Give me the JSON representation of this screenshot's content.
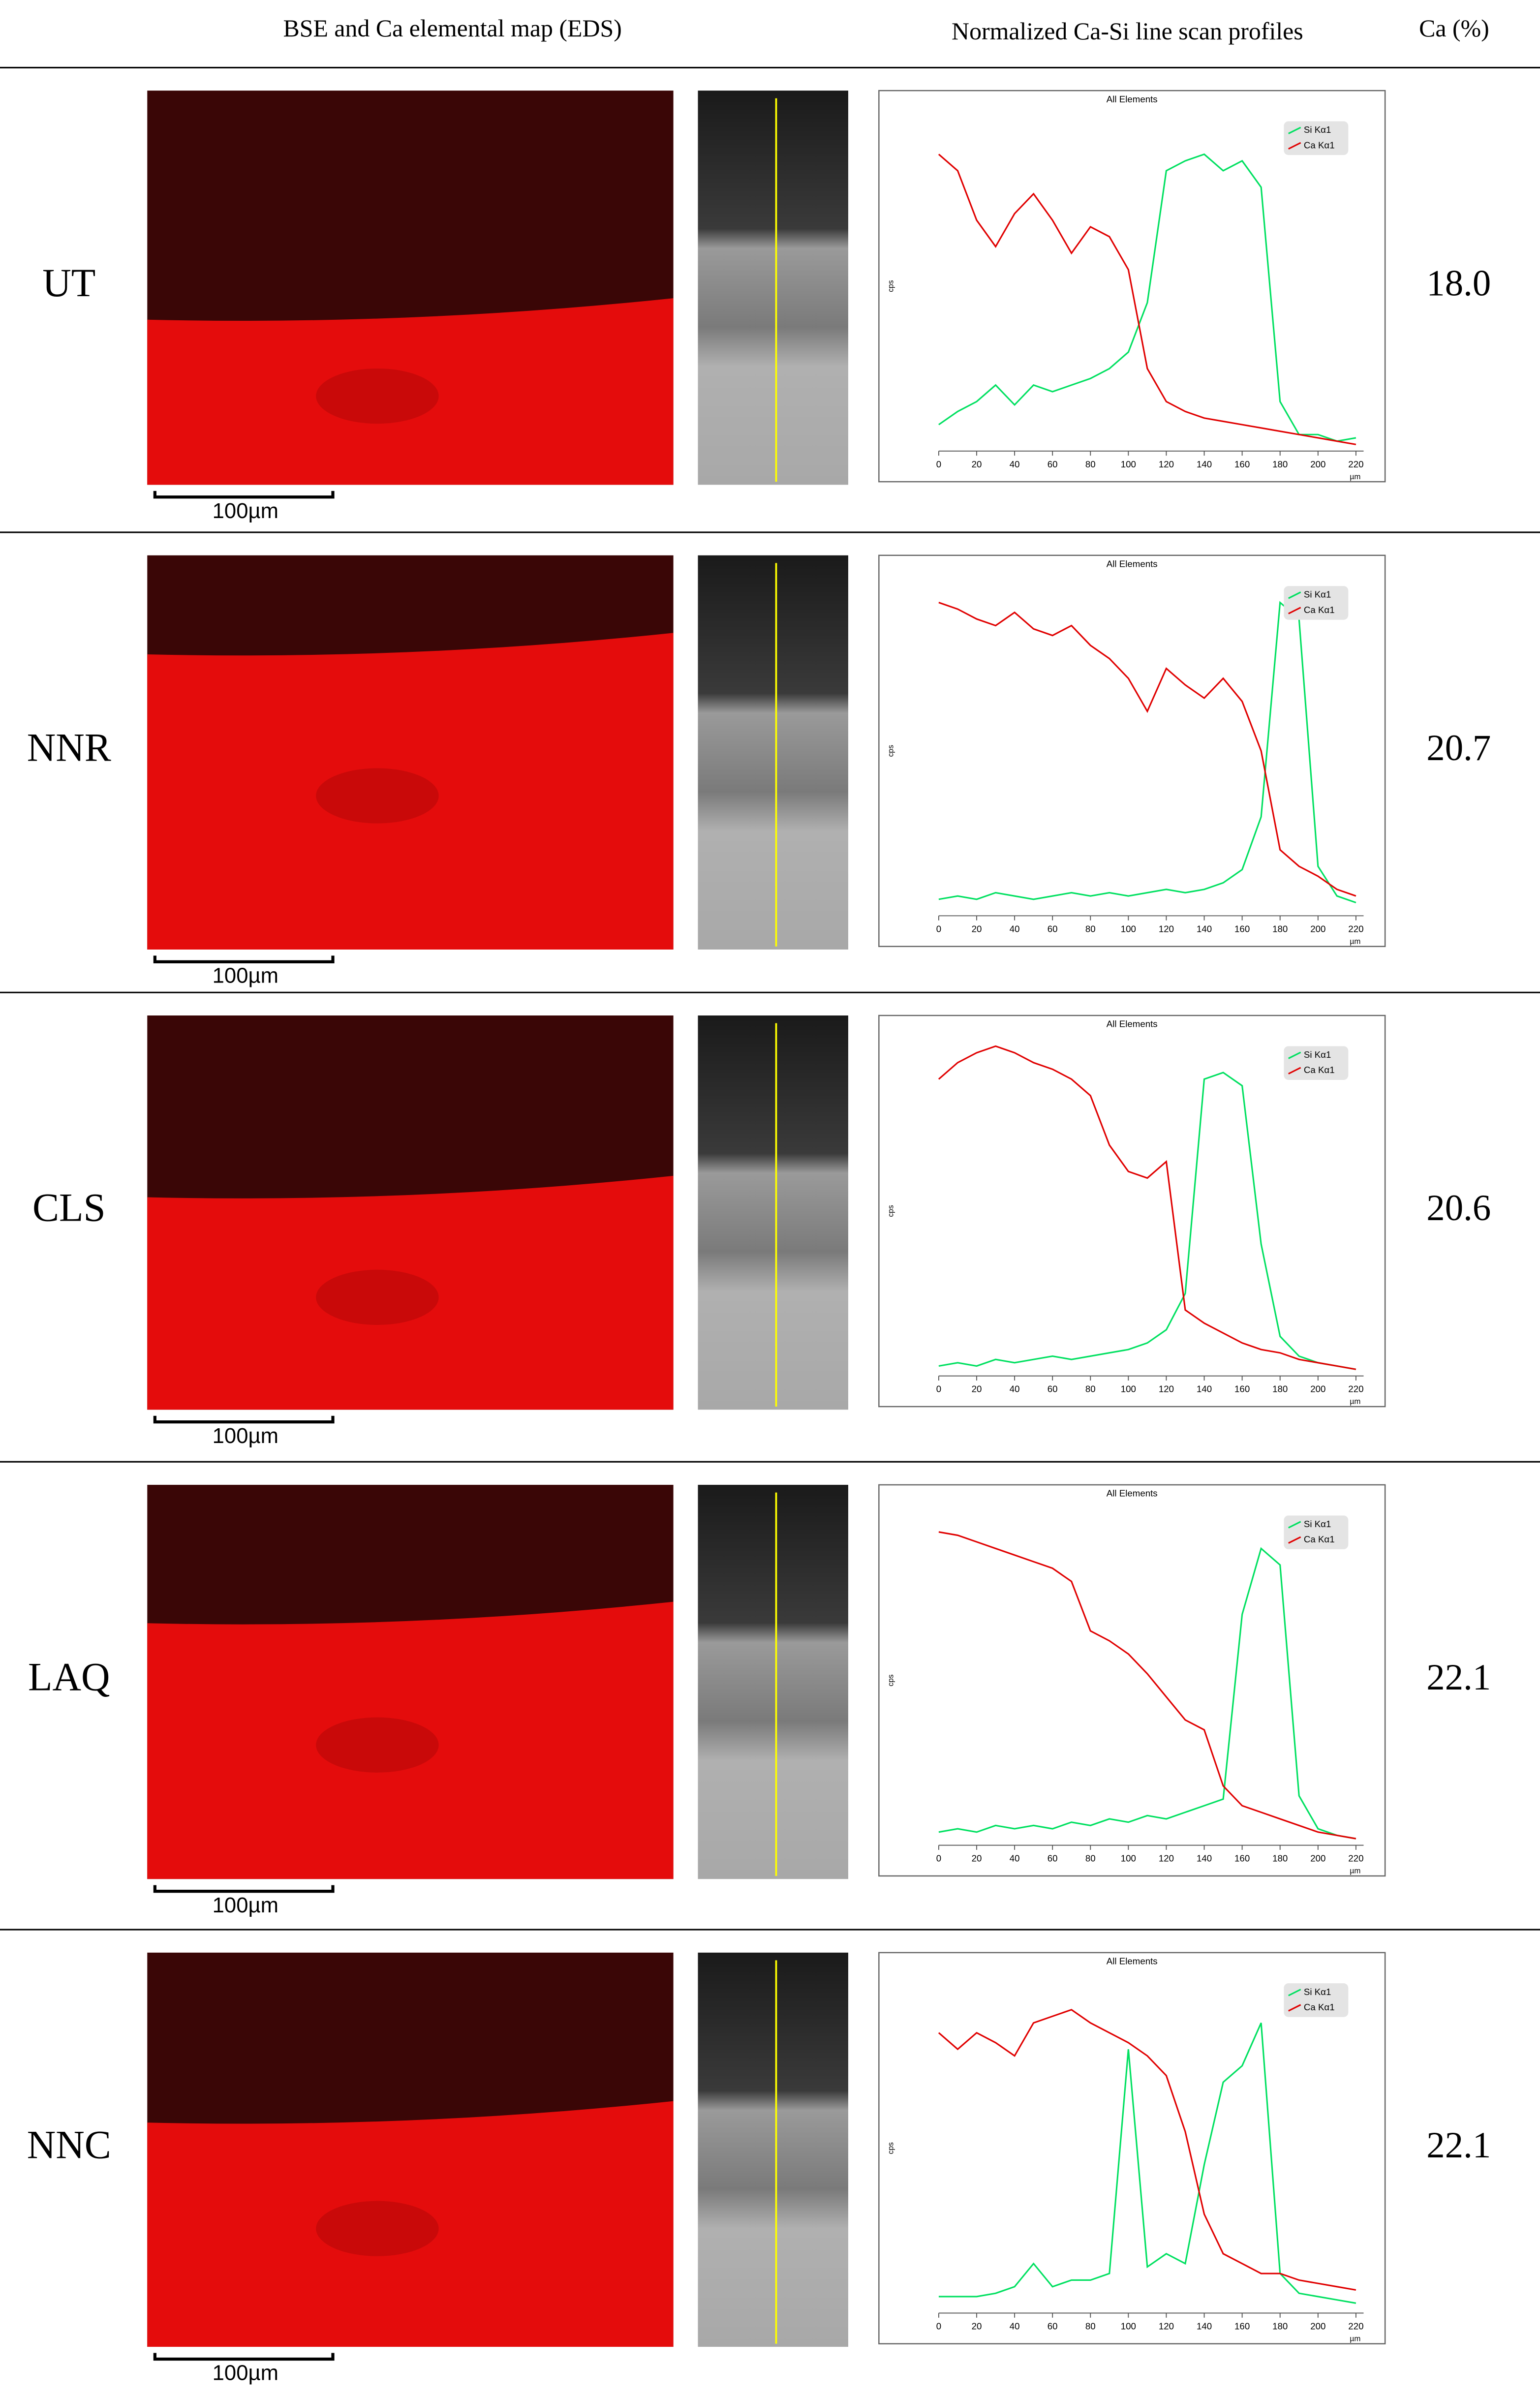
{
  "header": {
    "col1": "BSE and Ca elemental map (EDS)",
    "col2": "Normalized Ca-Si line scan profiles",
    "col3": "Ca (%)"
  },
  "rows": [
    {
      "label": "UT",
      "ca_percent": "18.0",
      "scale_bar": "100µm",
      "chart": {
        "type": "line",
        "title": "All Elements",
        "y_label": "cps",
        "x_unit": "µm",
        "x": [
          0,
          10,
          20,
          30,
          40,
          50,
          60,
          70,
          80,
          90,
          100,
          110,
          120,
          130,
          140,
          150,
          160,
          170,
          180,
          190,
          200,
          210,
          220
        ],
        "xlim": [
          0,
          220
        ],
        "xticks": [
          0,
          20,
          40,
          60,
          80,
          100,
          120,
          140,
          160,
          180,
          200,
          220
        ],
        "ylim": [
          0,
          100
        ],
        "series": [
          {
            "name": "Si Kα1",
            "color": "#00e060",
            "values": [
              8,
              12,
              15,
              20,
              14,
              20,
              18,
              20,
              22,
              25,
              30,
              45,
              85,
              88,
              90,
              85,
              88,
              80,
              15,
              5,
              5,
              3,
              4
            ]
          },
          {
            "name": "Ca Kα1",
            "color": "#e00000",
            "values": [
              90,
              85,
              70,
              62,
              72,
              78,
              70,
              60,
              68,
              65,
              55,
              25,
              15,
              12,
              10,
              9,
              8,
              7,
              6,
              5,
              4,
              3,
              2
            ]
          }
        ]
      }
    },
    {
      "label": "NNR",
      "ca_percent": "20.7",
      "scale_bar": "100µm",
      "chart": {
        "type": "line",
        "title": "All Elements",
        "y_label": "cps",
        "x_unit": "µm",
        "x": [
          0,
          10,
          20,
          30,
          40,
          50,
          60,
          70,
          80,
          90,
          100,
          110,
          120,
          130,
          140,
          150,
          160,
          170,
          180,
          190,
          200,
          210,
          220
        ],
        "xlim": [
          0,
          220
        ],
        "xticks": [
          0,
          20,
          40,
          60,
          80,
          100,
          120,
          140,
          160,
          180,
          200,
          220
        ],
        "ylim": [
          0,
          100
        ],
        "series": [
          {
            "name": "Si Kα1",
            "color": "#00e060",
            "values": [
              5,
              6,
              5,
              7,
              6,
              5,
              6,
              7,
              6,
              7,
              6,
              7,
              8,
              7,
              8,
              10,
              14,
              30,
              95,
              90,
              15,
              6,
              4
            ]
          },
          {
            "name": "Ca Kα1",
            "color": "#e00000",
            "values": [
              95,
              93,
              90,
              88,
              92,
              87,
              85,
              88,
              82,
              78,
              72,
              62,
              75,
              70,
              66,
              72,
              65,
              50,
              20,
              15,
              12,
              8,
              6
            ]
          }
        ]
      }
    },
    {
      "label": "CLS",
      "ca_percent": "20.6",
      "scale_bar": "100µm",
      "chart": {
        "type": "line",
        "title": "All Elements",
        "y_label": "cps",
        "x_unit": "µm",
        "x": [
          0,
          10,
          20,
          30,
          40,
          50,
          60,
          70,
          80,
          90,
          100,
          110,
          120,
          130,
          140,
          150,
          160,
          170,
          180,
          190,
          200,
          210,
          220
        ],
        "xlim": [
          0,
          220
        ],
        "xticks": [
          0,
          20,
          40,
          60,
          80,
          100,
          120,
          140,
          160,
          180,
          200,
          220
        ],
        "ylim": [
          0,
          100
        ],
        "series": [
          {
            "name": "Si Kα1",
            "color": "#00e060",
            "values": [
              3,
              4,
              3,
              5,
              4,
              5,
              6,
              5,
              6,
              7,
              8,
              10,
              14,
              25,
              90,
              92,
              88,
              40,
              12,
              6,
              4,
              3,
              2
            ]
          },
          {
            "name": "Ca Kα1",
            "color": "#e00000",
            "values": [
              90,
              95,
              98,
              100,
              98,
              95,
              93,
              90,
              85,
              70,
              62,
              60,
              65,
              20,
              16,
              13,
              10,
              8,
              7,
              5,
              4,
              3,
              2
            ]
          }
        ]
      }
    },
    {
      "label": "LAQ",
      "ca_percent": "22.1",
      "scale_bar": "100µm",
      "chart": {
        "type": "line",
        "title": "All Elements",
        "y_label": "cps",
        "x_unit": "µm",
        "x": [
          0,
          10,
          20,
          30,
          40,
          50,
          60,
          70,
          80,
          90,
          100,
          110,
          120,
          130,
          140,
          150,
          160,
          170,
          180,
          190,
          200,
          210,
          220
        ],
        "xlim": [
          0,
          220
        ],
        "xticks": [
          0,
          20,
          40,
          60,
          80,
          100,
          120,
          140,
          160,
          180,
          200,
          220
        ],
        "ylim": [
          0,
          100
        ],
        "series": [
          {
            "name": "Si Kα1",
            "color": "#00e060",
            "values": [
              4,
              5,
              4,
              6,
              5,
              6,
              5,
              7,
              6,
              8,
              7,
              9,
              8,
              10,
              12,
              14,
              70,
              90,
              85,
              15,
              5,
              3,
              2
            ]
          },
          {
            "name": "Ca Kα1",
            "color": "#e00000",
            "values": [
              95,
              94,
              92,
              90,
              88,
              86,
              84,
              80,
              65,
              62,
              58,
              52,
              45,
              38,
              35,
              18,
              12,
              10,
              8,
              6,
              4,
              3,
              2
            ]
          }
        ]
      }
    },
    {
      "label": "NNC",
      "ca_percent": "22.1",
      "scale_bar": "100µm",
      "chart": {
        "type": "line",
        "title": "All Elements",
        "y_label": "cps",
        "x_unit": "µm",
        "x": [
          0,
          10,
          20,
          30,
          40,
          50,
          60,
          70,
          80,
          90,
          100,
          110,
          120,
          130,
          140,
          150,
          160,
          170,
          180,
          190,
          200,
          210,
          220
        ],
        "xlim": [
          0,
          220
        ],
        "xticks": [
          0,
          20,
          40,
          60,
          80,
          100,
          120,
          140,
          160,
          180,
          200,
          220
        ],
        "ylim": [
          0,
          100
        ],
        "series": [
          {
            "name": "Si Kα1",
            "color": "#00e060",
            "values": [
              5,
              5,
              5,
              6,
              8,
              15,
              8,
              10,
              10,
              12,
              80,
              14,
              18,
              15,
              45,
              70,
              75,
              88,
              12,
              6,
              5,
              4,
              3
            ]
          },
          {
            "name": "Ca Kα1",
            "color": "#e00000",
            "values": [
              85,
              80,
              85,
              82,
              78,
              88,
              90,
              92,
              88,
              85,
              82,
              78,
              72,
              55,
              30,
              18,
              15,
              12,
              12,
              10,
              9,
              8,
              7
            ]
          }
        ]
      }
    }
  ]
}
